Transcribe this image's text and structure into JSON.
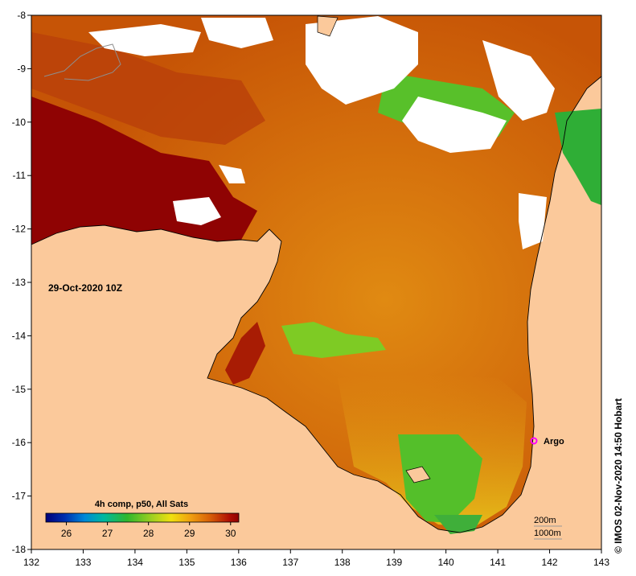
{
  "map": {
    "date_label": "29-Oct-2020 10Z",
    "x_ticks": [
      "132",
      "133",
      "134",
      "135",
      "136",
      "137",
      "138",
      "139",
      "140",
      "141",
      "142",
      "143"
    ],
    "y_ticks": [
      "-8",
      "-9",
      "-10",
      "-11",
      "-12",
      "-13",
      "-14",
      "-15",
      "-16",
      "-17",
      "-18"
    ],
    "argo_label": "Argo",
    "argo_position": {
      "lon": 141.7,
      "lat": -16.0
    },
    "colorbar_title": "4h comp, p50, All Sats",
    "colorbar_ticks": [
      "26",
      "27",
      "28",
      "29",
      "30"
    ],
    "colorbar_range": [
      25.5,
      30.2
    ],
    "contour_labels": [
      "200m",
      "1000m"
    ],
    "credit": "© IMOS 02-Nov-2020 14:50 Hobart",
    "colors": {
      "land": "#fbc99b",
      "cloud": "#ffffff",
      "sst_hot": "#8b0000",
      "sst_warm": "#d2660a",
      "sst_mid": "#e39a12",
      "sst_cool": "#4fc12a",
      "argo_marker": "#ff00ff"
    }
  }
}
